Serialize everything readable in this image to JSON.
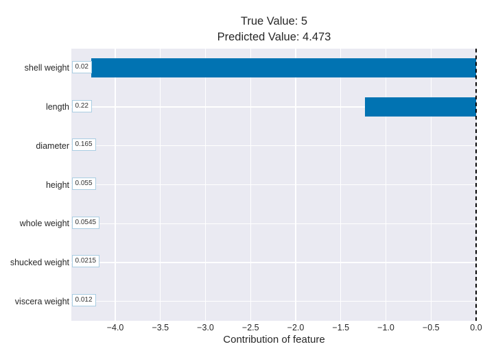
{
  "figure": {
    "title_line1": "True Value: 5",
    "title_line2": "Predicted Value: 4.473",
    "xlabel": "Contribution of feature"
  },
  "colors": {
    "bar": "#0173b2",
    "plot_background": "#eaeaf2",
    "gridline": "#ffffff",
    "text": "#262626",
    "annotation_border": "#a9cde2",
    "annotation_background": "#ffffff",
    "zero_line": "#000000"
  },
  "chart_data": {
    "type": "bar",
    "orientation": "horizontal",
    "title": "True Value: 5\nPredicted Value: 4.473",
    "xlabel": "Contribution of feature",
    "ylabel": "",
    "categories": [
      "shell weight",
      "length",
      "diameter",
      "height",
      "whole weight",
      "shucked weight",
      "viscera weight"
    ],
    "values": [
      -4.27,
      -1.23,
      0,
      0,
      0,
      0,
      0
    ],
    "feature_value_labels": [
      "0.02",
      "0.22",
      "0.165",
      "0.055",
      "0.0545",
      "0.0215",
      "0.012"
    ],
    "xlim": [
      -4.487,
      0
    ],
    "xticks": [
      -4.0,
      -3.5,
      -3.0,
      -2.5,
      -2.0,
      -1.5,
      -1.0,
      -0.5,
      0.0
    ],
    "xtick_labels": [
      "−4.0",
      "−3.5",
      "−3.0",
      "−2.5",
      "−2.0",
      "−1.5",
      "−1.0",
      "−0.5",
      "0.0"
    ],
    "grid": true,
    "legend": false,
    "zero_reference_line": "dashed"
  }
}
